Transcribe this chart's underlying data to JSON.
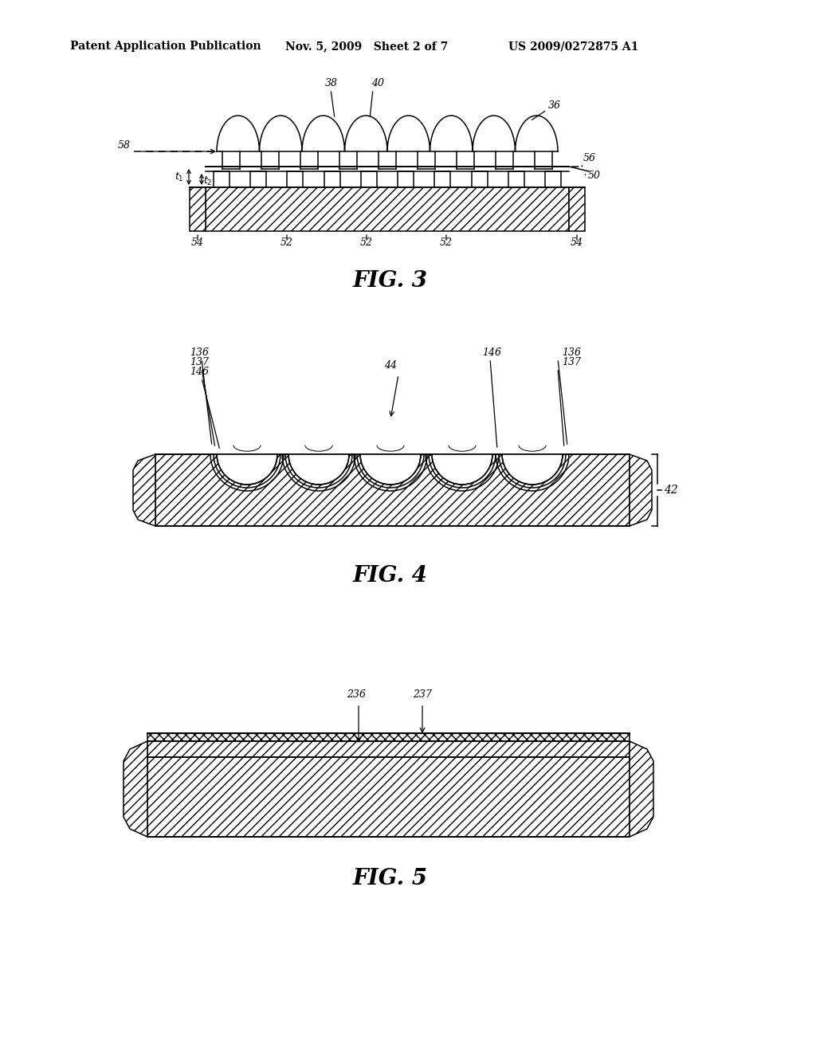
{
  "bg_color": "#ffffff",
  "header_left": "Patent Application Publication",
  "header_mid": "Nov. 5, 2009   Sheet 2 of 7",
  "header_right": "US 2009/0272875 A1",
  "fig3_label": "FIG. 3",
  "fig4_label": "FIG. 4",
  "fig5_label": "FIG. 5"
}
